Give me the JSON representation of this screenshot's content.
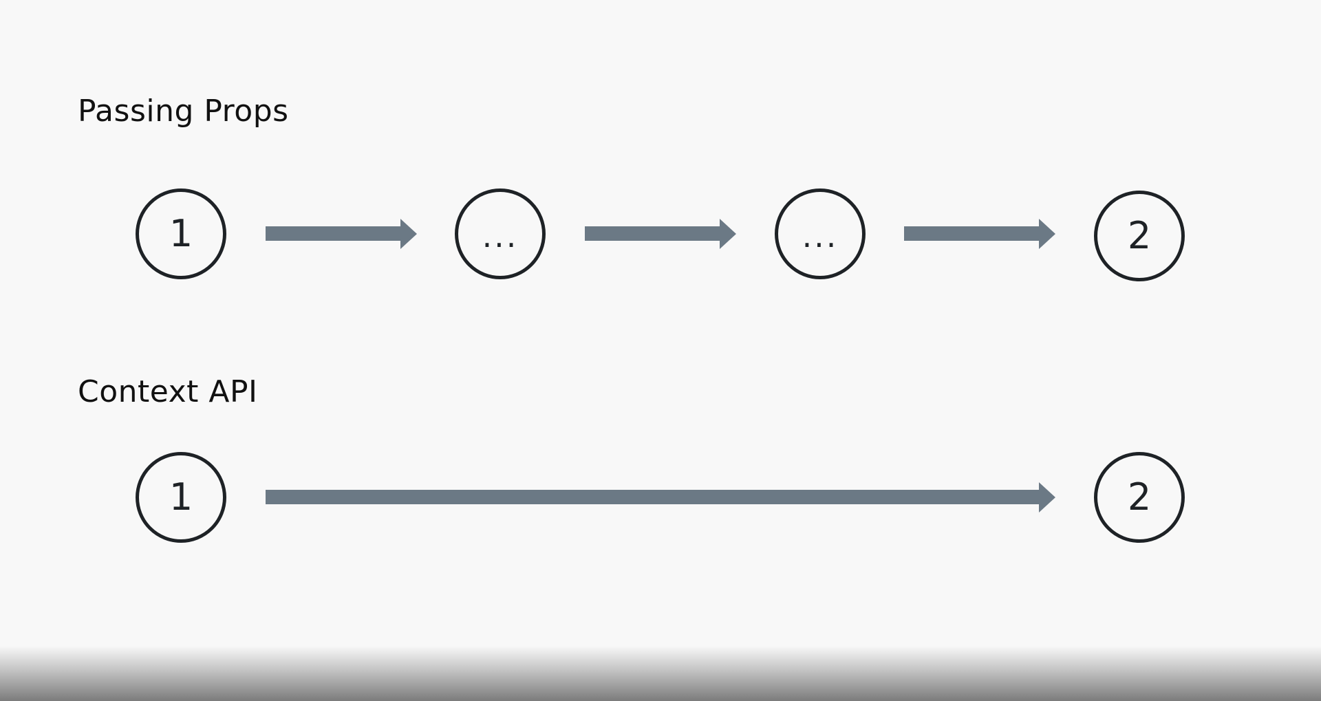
{
  "sections": [
    {
      "title": "Passing Props",
      "nodes": [
        "1",
        "...",
        "...",
        "2"
      ]
    },
    {
      "title": "Context API",
      "nodes": [
        "1",
        "2"
      ]
    }
  ],
  "colors": {
    "background": "#f8f8f8",
    "node_stroke": "#1e2226",
    "arrow_fill": "#6b7985",
    "text": "#111111"
  }
}
